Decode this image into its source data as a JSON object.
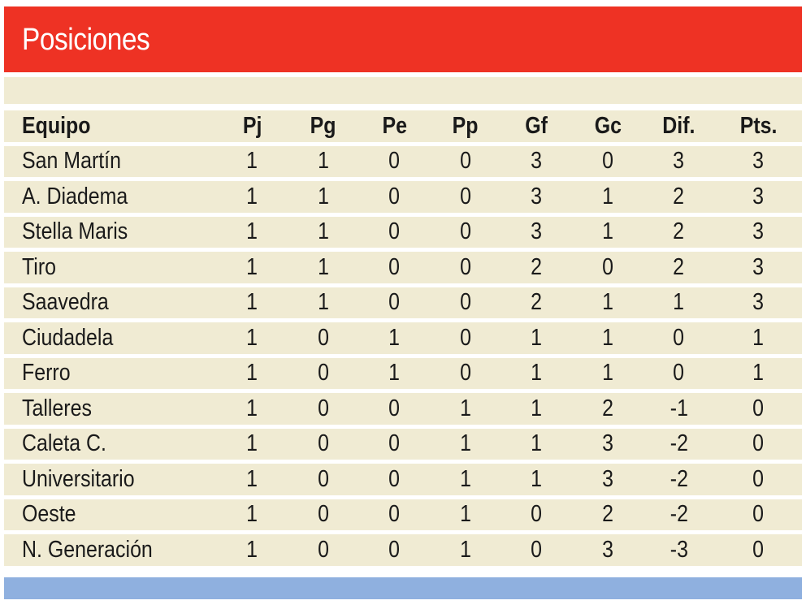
{
  "title": "Posiciones",
  "colors": {
    "title_bar": "#ee3224",
    "row_fill": "#f0ebd3",
    "footer_bar": "#8fb0df",
    "text": "#1a1a1a"
  },
  "table": {
    "headers": [
      "Equipo",
      "Pj",
      "Pg",
      "Pe",
      "Pp",
      "Gf",
      "Gc",
      "Dif.",
      "Pts."
    ],
    "rows": [
      [
        "San Martín",
        "1",
        "1",
        "0",
        "0",
        "3",
        "0",
        "3",
        "3"
      ],
      [
        "A. Diadema",
        "1",
        "1",
        "0",
        "0",
        "3",
        "1",
        "2",
        "3"
      ],
      [
        "Stella Maris",
        "1",
        "1",
        "0",
        "0",
        "3",
        "1",
        "2",
        "3"
      ],
      [
        "Tiro",
        "1",
        "1",
        "0",
        "0",
        "2",
        "0",
        "2",
        "3"
      ],
      [
        "Saavedra",
        "1",
        "1",
        "0",
        "0",
        "2",
        "1",
        "1",
        "3"
      ],
      [
        "Ciudadela",
        "1",
        "0",
        "1",
        "0",
        "1",
        "1",
        "0",
        "1"
      ],
      [
        "Ferro",
        "1",
        "0",
        "1",
        "0",
        "1",
        "1",
        "0",
        "1"
      ],
      [
        "Talleres",
        "1",
        "0",
        "0",
        "1",
        "1",
        "2",
        "-1",
        "0"
      ],
      [
        "Caleta C.",
        "1",
        "0",
        "0",
        "1",
        "1",
        "3",
        "-2",
        "0"
      ],
      [
        "Universitario",
        "1",
        "0",
        "0",
        "1",
        "1",
        "3",
        "-2",
        "0"
      ],
      [
        "Oeste",
        "1",
        "0",
        "0",
        "1",
        "0",
        "2",
        "-2",
        "0"
      ],
      [
        "N. Generación",
        "1",
        "0",
        "0",
        "1",
        "0",
        "3",
        "-3",
        "0"
      ]
    ]
  }
}
